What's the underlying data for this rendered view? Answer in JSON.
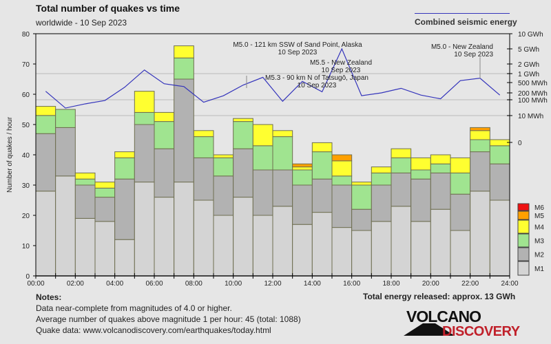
{
  "header": {
    "title": "Total number of quakes vs time",
    "subtitle": "worldwide - 10 Sep 2023",
    "energy_legend": "Combined seismic energy"
  },
  "notes": {
    "heading": "Notes:",
    "lines": [
      "Data near-complete from magnitudes of 4.0 or higher.",
      "Average number of quakes above magnitude 1 per hour: 45 (total: 1088)",
      "Quake data: www.volcanodiscovery.com/earthquakes/today.html"
    ],
    "total_energy": "Total energy released: approx. 13 GWh"
  },
  "logo": {
    "top": "VOLCANO",
    "bottom": "DISCOVERY"
  },
  "colors": {
    "M1": "#d4d4d4",
    "M2": "#b2b2b2",
    "M3": "#a0e490",
    "M4": "#ffff30",
    "M5": "#ffa000",
    "M6": "#ee1111",
    "energy_line": "#3333bb",
    "background": "#e6e6e6",
    "logo_red": "#c0202a"
  },
  "chart_data": {
    "type": "bar",
    "stacked": true,
    "title": "Total number of quakes vs time",
    "subtitle": "worldwide - 10 Sep 2023",
    "xlabel": "",
    "ylabel": "Number of quakes / hour",
    "ylim": [
      0,
      80
    ],
    "yticks": [
      "0",
      "10",
      "20",
      "30",
      "40",
      "50",
      "60",
      "70",
      "80"
    ],
    "xticks": [
      "00:00",
      "02:00",
      "04:00",
      "06:00",
      "08:00",
      "10:00",
      "12:00",
      "14:00",
      "16:00",
      "18:00",
      "20:00",
      "22:00",
      "24:00"
    ],
    "categories": [
      "00",
      "01",
      "02",
      "03",
      "04",
      "05",
      "06",
      "07",
      "08",
      "09",
      "10",
      "11",
      "12",
      "13",
      "14",
      "15",
      "16",
      "17",
      "18",
      "19",
      "20",
      "21",
      "22",
      "23"
    ],
    "legend": [
      "M6",
      "M5",
      "M4",
      "M3",
      "M2",
      "M1"
    ],
    "legend_position": "bottom-right",
    "grid": true,
    "series": [
      {
        "name": "M1",
        "values": [
          28,
          33,
          19,
          18,
          12,
          31,
          26,
          31,
          25,
          20,
          26,
          20,
          23,
          17,
          21,
          16,
          15,
          18,
          23,
          18,
          22,
          15,
          28,
          25
        ]
      },
      {
        "name": "M2",
        "values": [
          19,
          16,
          11,
          8,
          20,
          19,
          16,
          34,
          14,
          13,
          16,
          15,
          12,
          13,
          11,
          14,
          7,
          12,
          11,
          14,
          12,
          12,
          13,
          12
        ]
      },
      {
        "name": "M3",
        "values": [
          6,
          6,
          2,
          3,
          7,
          4,
          9,
          7,
          7,
          6,
          9,
          8,
          11,
          5,
          9,
          3,
          8,
          4,
          5,
          3,
          3,
          7,
          4,
          6
        ]
      },
      {
        "name": "M4",
        "values": [
          3,
          0,
          2,
          2,
          2,
          7,
          3,
          4,
          2,
          1,
          1,
          7,
          2,
          1,
          3,
          5,
          1,
          2,
          3,
          4,
          3,
          5,
          3,
          2
        ]
      },
      {
        "name": "M5",
        "values": [
          0,
          0,
          0,
          0,
          0,
          0,
          0,
          0,
          0,
          0,
          0,
          0,
          0,
          1,
          0,
          2,
          0,
          0,
          0,
          0,
          0,
          0,
          1,
          0
        ]
      },
      {
        "name": "M6",
        "values": [
          0,
          0,
          0,
          0,
          0,
          0,
          0,
          0,
          0,
          0,
          0,
          0,
          0,
          0,
          0,
          0,
          0,
          0,
          0,
          0,
          0,
          0,
          0,
          0
        ]
      }
    ],
    "energy": {
      "name": "Combined seismic energy",
      "unit": "MWh",
      "values": [
        230,
        30,
        55,
        90,
        330,
        1300,
        450,
        350,
        70,
        150,
        400,
        750,
        80,
        550,
        220,
        5000,
        150,
        200,
        300,
        160,
        110,
        580,
        700,
        160
      ],
      "axis_ticks": [
        {
          "label": "10 GWh",
          "mwh": 10000
        },
        {
          "label": "5 GWh",
          "mwh": 5000
        },
        {
          "label": "2 GWh",
          "mwh": 2000
        },
        {
          "label": "1 GWh",
          "mwh": 1000
        },
        {
          "label": "500 MWh",
          "mwh": 500
        },
        {
          "label": "200 MWh",
          "mwh": 200
        },
        {
          "label": "100 MWh",
          "mwh": 100
        },
        {
          "label": "10 MWh",
          "mwh": 10
        },
        {
          "label": "0",
          "mwh": 0
        }
      ]
    },
    "annotations": [
      {
        "hour": 13,
        "lines": [
          "M5.0 - 121 km SSW of Sand Point, Alaska",
          "10 Sep 2023"
        ]
      },
      {
        "hour": 15,
        "lines": [
          "M5.5 - New Zealand",
          "10 Sep 2023"
        ]
      },
      {
        "hour": 15,
        "lines": [
          "M5.3 - 90 km N of Tatsugō, Japan",
          "10 Sep 2023"
        ]
      },
      {
        "hour": 22,
        "lines": [
          "M5.0 - New Zealand",
          "10 Sep 2023"
        ]
      }
    ]
  }
}
